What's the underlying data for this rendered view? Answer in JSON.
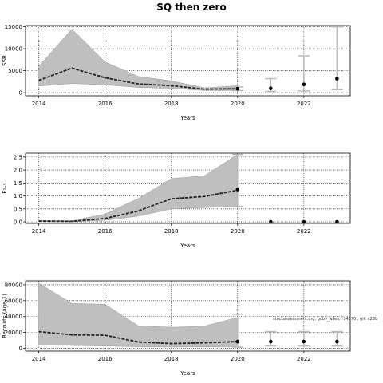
{
  "title": "SQ then zero",
  "colors": {
    "band": "#bfbfbf",
    "band_edge": "#9a9a9a",
    "median_line": "#222222",
    "point": "#000000",
    "errorbar": "#b8b8b8",
    "grid": "#000000"
  },
  "chart_data": [
    {
      "type": "line",
      "name": "ssb-panel",
      "xlabel": "Years",
      "ylabel": "SSB",
      "xlim": [
        2013.6,
        2023.4
      ],
      "ylim": [
        -700,
        15300
      ],
      "xticks": [
        2014,
        2016,
        2018,
        2020,
        2022
      ],
      "yticks": [
        0,
        5000,
        10000,
        15000
      ],
      "grid": true,
      "series": [
        {
          "x": [
            2014,
            2015,
            2016,
            2017,
            2018,
            2019,
            2020
          ],
          "y": [
            2800,
            5600,
            3400,
            2000,
            1600,
            800,
            900
          ],
          "lower": [
            1500,
            2100,
            1800,
            1200,
            1000,
            500,
            500
          ],
          "upper": [
            6000,
            14500,
            7000,
            3700,
            2700,
            1100,
            1600
          ]
        }
      ],
      "projections": [
        {
          "x": 2020,
          "y": 900,
          "lower": 500,
          "upper": 1300
        },
        {
          "x": 2021,
          "y": 1000,
          "lower": 300,
          "upper": 3200
        },
        {
          "x": 2022,
          "y": 1900,
          "lower": 400,
          "upper": 8400
        },
        {
          "x": 2023,
          "y": 3200,
          "lower": 700,
          "upper": 15000
        }
      ]
    },
    {
      "type": "line",
      "name": "f-panel",
      "xlabel": "Years",
      "ylabel": "F₃₋₅",
      "xlim": [
        2013.6,
        2023.4
      ],
      "ylim": [
        -0.06,
        2.65
      ],
      "xticks": [
        2014,
        2016,
        2018,
        2020,
        2022
      ],
      "yticks": [
        0.0,
        0.5,
        1.0,
        1.5,
        2.0,
        2.5
      ],
      "ytick_labels": [
        "0.0",
        "0.5",
        "1.0",
        "1.5",
        "2.0",
        "2.5"
      ],
      "grid": true,
      "series": [
        {
          "x": [
            2014,
            2015,
            2016,
            2017,
            2018,
            2019,
            2020
          ],
          "y": [
            0.03,
            0.02,
            0.13,
            0.42,
            0.89,
            0.98,
            1.22
          ],
          "lower": [
            0.01,
            0.01,
            0.06,
            0.22,
            0.5,
            0.55,
            0.6
          ],
          "upper": [
            0.06,
            0.04,
            0.3,
            0.9,
            1.67,
            1.78,
            2.6
          ]
        }
      ],
      "projections": [
        {
          "x": 2020,
          "y": 1.25,
          "lower": 0.6,
          "upper": 2.6
        },
        {
          "x": 2021,
          "y": 0.0,
          "lower": 0.0,
          "upper": 0.0
        },
        {
          "x": 2022,
          "y": 0.0,
          "lower": 0.0,
          "upper": 0.0
        },
        {
          "x": 2023,
          "y": 0.0,
          "lower": 0.0,
          "upper": 0.0
        }
      ]
    },
    {
      "type": "line",
      "name": "recruits-panel",
      "xlabel": "Years",
      "ylabel": "Recruits (age 1)",
      "xlim": [
        2013.6,
        2023.4
      ],
      "ylim": [
        -3500,
        85000
      ],
      "xticks": [
        2014,
        2016,
        2018,
        2020,
        2022
      ],
      "yticks": [
        0,
        20000,
        40000,
        60000,
        80000
      ],
      "grid": true,
      "annotation": "stockassessment.org, goby_wbss, r14370 , git: c28b",
      "series": [
        {
          "x": [
            2014,
            2015,
            2016,
            2017,
            2018,
            2019,
            2020
          ],
          "y": [
            21000,
            17000,
            16500,
            8000,
            6000,
            7000,
            8500
          ],
          "lower": [
            4000,
            3500,
            2800,
            2000,
            1600,
            1800,
            1500
          ],
          "upper": [
            82000,
            56500,
            55500,
            28500,
            26500,
            28000,
            39000
          ]
        }
      ],
      "projections": [
        {
          "x": 2020,
          "y": 8500,
          "lower": 1500,
          "upper": 43000
        },
        {
          "x": 2021,
          "y": 8500,
          "lower": 3000,
          "upper": 21000
        },
        {
          "x": 2022,
          "y": 8500,
          "lower": 3000,
          "upper": 21000
        },
        {
          "x": 2023,
          "y": 8500,
          "lower": 3000,
          "upper": 21000
        }
      ]
    }
  ]
}
